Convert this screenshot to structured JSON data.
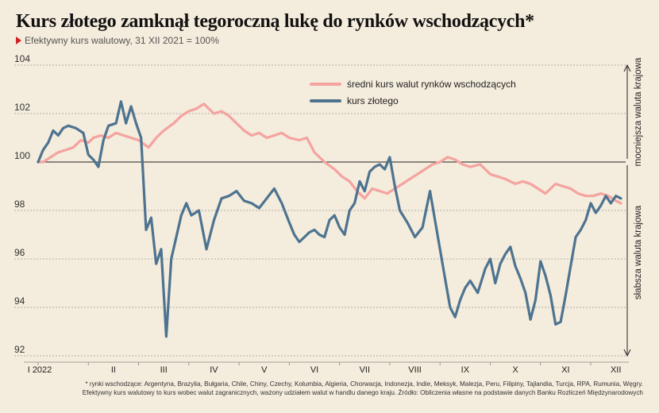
{
  "header": {
    "title": "Kurs złotego zamknął tegoroczną lukę do rynków wschodzących*",
    "subtitle": "Efektywny kurs walutowy, 31 XII 2021 = 100%"
  },
  "side_labels": {
    "top": "mocniejsza waluta krajowa",
    "bottom": "słabsza waluta krajowa"
  },
  "footnote": {
    "line1": "* rynki wschodzące: Argentyna, Brazylia, Bułgaria, Chile, Chiny, Czechy, Kolumbia, Algieria, Chorwacja, Indonezja, Indie, Meksyk, Malezja, Peru, Filipiny, Tajlandia, Turcja, RPA, Rumunia, Węgry.",
    "line2": "Efektywny kurs walutowy to kurs wobec walut zagranicznych, ważony udziałem walut w handlu danego kraju. Źródło: Obliczenia własne na podstawie danych Banku Rozliczeń Międzynarodowych"
  },
  "colors": {
    "em_series": "#f4a3a0",
    "pln_series": "#4d7390",
    "reference_line": "#222222"
  },
  "chart_data": {
    "type": "line",
    "xlabel": "",
    "ylabel": "",
    "ylim": [
      92,
      104
    ],
    "yticks": [
      92,
      94,
      96,
      98,
      100,
      102,
      104
    ],
    "reference_line": 100,
    "grid": "horizontal dashed",
    "legend_position": "top-right",
    "months": [
      "I 2022",
      "II",
      "III",
      "IV",
      "V",
      "VI",
      "VII",
      "VIII",
      "IX",
      "X",
      "XI",
      "XII"
    ],
    "x_unit": "month index (0 = start of January 2022)",
    "series": [
      {
        "name": "średni kurs walut rynków wschodzących",
        "color": "#f4a3a0",
        "x": [
          0,
          0.1,
          0.25,
          0.4,
          0.55,
          0.7,
          0.85,
          1.0,
          1.1,
          1.25,
          1.4,
          1.55,
          1.7,
          1.85,
          2.0,
          2.2,
          2.35,
          2.5,
          2.7,
          2.85,
          3.0,
          3.15,
          3.3,
          3.5,
          3.65,
          3.8,
          3.95,
          4.1,
          4.25,
          4.4,
          4.55,
          4.7,
          4.85,
          5.0,
          5.2,
          5.35,
          5.5,
          5.7,
          5.9,
          6.05,
          6.2,
          6.35,
          6.5,
          6.65,
          6.8,
          6.95,
          7.1,
          7.25,
          7.4,
          7.55,
          7.7,
          7.85,
          8.0,
          8.15,
          8.3,
          8.45,
          8.6,
          8.8,
          9.0,
          9.15,
          9.3,
          9.5,
          9.65,
          9.8,
          9.95,
          10.1,
          10.3,
          10.45,
          10.6,
          10.75,
          10.9,
          11.05,
          11.2,
          11.35,
          11.5,
          11.6
        ],
        "values": [
          100.0,
          100.0,
          100.2,
          100.4,
          100.5,
          100.6,
          100.9,
          100.8,
          101.0,
          101.1,
          101.0,
          101.2,
          101.1,
          101.0,
          100.9,
          100.6,
          101.0,
          101.3,
          101.6,
          101.9,
          102.1,
          102.2,
          102.4,
          102.0,
          102.1,
          101.9,
          101.6,
          101.3,
          101.1,
          101.2,
          101.0,
          101.1,
          101.2,
          101.0,
          100.9,
          101.0,
          100.4,
          100.0,
          99.7,
          99.4,
          99.2,
          98.8,
          98.5,
          98.9,
          98.8,
          98.7,
          98.9,
          99.1,
          99.3,
          99.5,
          99.7,
          99.9,
          100.0,
          100.2,
          100.1,
          99.9,
          99.8,
          99.9,
          99.5,
          99.4,
          99.3,
          99.1,
          99.2,
          99.1,
          98.9,
          98.7,
          99.1,
          99.0,
          98.9,
          98.7,
          98.6,
          98.6,
          98.7,
          98.6,
          98.4,
          98.3
        ]
      },
      {
        "name": "kurs złotego",
        "color": "#4d7390",
        "x": [
          0,
          0.1,
          0.2,
          0.3,
          0.4,
          0.5,
          0.6,
          0.75,
          0.9,
          1.0,
          1.1,
          1.2,
          1.3,
          1.4,
          1.55,
          1.65,
          1.75,
          1.85,
          1.95,
          2.05,
          2.15,
          2.25,
          2.35,
          2.45,
          2.55,
          2.65,
          2.75,
          2.85,
          2.95,
          3.05,
          3.2,
          3.35,
          3.5,
          3.65,
          3.8,
          3.95,
          4.1,
          4.25,
          4.4,
          4.55,
          4.7,
          4.85,
          5.0,
          5.1,
          5.2,
          5.3,
          5.4,
          5.5,
          5.6,
          5.7,
          5.8,
          5.9,
          6.0,
          6.1,
          6.2,
          6.3,
          6.4,
          6.5,
          6.6,
          6.7,
          6.8,
          6.9,
          7.0,
          7.1,
          7.2,
          7.35,
          7.5,
          7.65,
          7.8,
          7.95,
          8.1,
          8.2,
          8.3,
          8.4,
          8.5,
          8.6,
          8.75,
          8.9,
          9.0,
          9.1,
          9.2,
          9.3,
          9.4,
          9.5,
          9.6,
          9.7,
          9.8,
          9.9,
          10.0,
          10.1,
          10.2,
          10.3,
          10.4,
          10.5,
          10.6,
          10.7,
          10.8,
          10.9,
          11.0,
          11.1,
          11.2,
          11.3,
          11.4,
          11.5,
          11.6
        ],
        "values": [
          100.0,
          100.5,
          100.8,
          101.3,
          101.1,
          101.4,
          101.5,
          101.4,
          101.2,
          100.3,
          100.1,
          99.8,
          100.9,
          101.5,
          101.6,
          102.5,
          101.6,
          102.3,
          101.6,
          101.0,
          97.2,
          97.7,
          95.8,
          96.4,
          92.8,
          96.0,
          96.9,
          97.8,
          98.3,
          97.8,
          98.0,
          96.4,
          97.6,
          98.5,
          98.6,
          98.8,
          98.4,
          98.3,
          98.1,
          98.5,
          98.9,
          98.3,
          97.5,
          97.0,
          96.7,
          96.9,
          97.1,
          97.2,
          97.0,
          96.9,
          97.6,
          97.8,
          97.3,
          97.0,
          98.0,
          98.3,
          99.2,
          98.8,
          99.6,
          99.8,
          99.9,
          99.7,
          100.2,
          99.0,
          98.0,
          97.5,
          96.9,
          97.3,
          98.8,
          97.0,
          95.2,
          94.0,
          93.6,
          94.3,
          94.8,
          95.1,
          94.6,
          95.6,
          96.0,
          95.0,
          95.8,
          96.2,
          96.5,
          95.7,
          95.2,
          94.6,
          93.5,
          94.3,
          95.9,
          95.3,
          94.5,
          93.3,
          93.4,
          94.5,
          95.7,
          96.9,
          97.2,
          97.6,
          98.3,
          97.9,
          98.2,
          98.6,
          98.3,
          98.6,
          98.5
        ]
      }
    ]
  }
}
